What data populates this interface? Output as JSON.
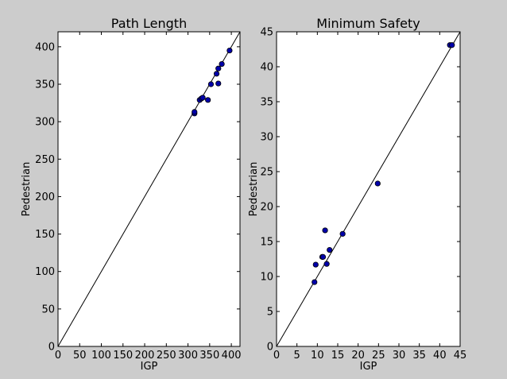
{
  "chart_data": [
    {
      "type": "scatter",
      "title": "Path Length",
      "xlabel": "IGP",
      "ylabel": "Pedestrian",
      "xlim": [
        0,
        420
      ],
      "ylim": [
        0,
        420
      ],
      "xticks": [
        0,
        50,
        100,
        150,
        200,
        250,
        300,
        350,
        400
      ],
      "yticks": [
        0,
        50,
        100,
        150,
        200,
        250,
        300,
        350,
        400
      ],
      "reference_line": "y = x",
      "grid": false,
      "marker_color": "#0000aa",
      "x": [
        315,
        315,
        327,
        331,
        334,
        346,
        353,
        366,
        370,
        370,
        378,
        396
      ],
      "y": [
        311,
        313,
        329,
        331,
        332,
        329,
        350,
        364,
        371,
        351,
        377,
        395
      ]
    },
    {
      "type": "scatter",
      "title": "Minimum Safety",
      "xlabel": "IGP",
      "ylabel": "Pedestrian",
      "xlim": [
        0,
        45
      ],
      "ylim": [
        0,
        45
      ],
      "xticks": [
        0,
        5,
        10,
        15,
        20,
        25,
        30,
        35,
        40,
        45
      ],
      "yticks": [
        0,
        5,
        10,
        15,
        20,
        25,
        30,
        35,
        40,
        45
      ],
      "reference_line": "y = x",
      "grid": false,
      "marker_color": "#0000aa",
      "x": [
        9.3,
        9.6,
        11.2,
        11.4,
        11.9,
        12.3,
        13.0,
        16.2,
        24.8,
        42.5,
        43.0
      ],
      "y": [
        9.2,
        11.7,
        12.8,
        12.8,
        16.6,
        11.8,
        13.8,
        16.1,
        23.3,
        43.1,
        43.1
      ]
    }
  ]
}
